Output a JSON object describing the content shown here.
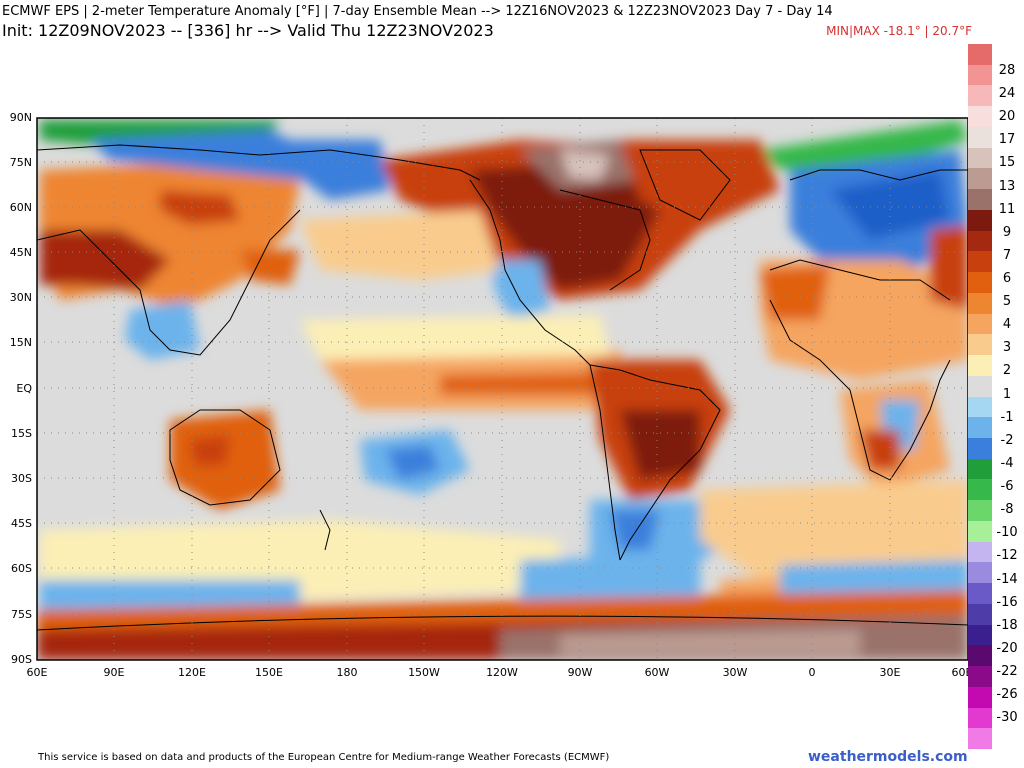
{
  "header": {
    "title_line": "ECMWF EPS | 2-meter Temperature Anomaly [°F] | 7-day Ensemble Mean --> 12Z16NOV2023 & 12Z23NOV2023  Day 7 - Day 14",
    "init_line": "Init: 12Z09NOV2023 -- [336] hr --> Valid Thu 12Z23NOV2023",
    "minmax": "MIN|MAX -18.1° | 20.7°F"
  },
  "map": {
    "lat_labels": [
      "90N",
      "75N",
      "60N",
      "45N",
      "30N",
      "15N",
      "EQ",
      "15S",
      "30S",
      "45S",
      "60S",
      "75S",
      "90S"
    ],
    "lon_labels": [
      "60E",
      "90E",
      "120E",
      "150E",
      "180",
      "150W",
      "120W",
      "90W",
      "60W",
      "30W",
      "0",
      "30E",
      "60E"
    ]
  },
  "colorbar": {
    "labels": [
      "28",
      "24",
      "20",
      "17",
      "15",
      "13",
      "11",
      "9",
      "7",
      "6",
      "5",
      "4",
      "3",
      "2",
      "1",
      "-1",
      "-2",
      "-4",
      "-6",
      "-8",
      "-10",
      "-12",
      "-14",
      "-16",
      "-18",
      "-20",
      "-22",
      "-26",
      "-30"
    ],
    "colors": [
      "#e56a6a",
      "#f29494",
      "#f6b8b8",
      "#f9dede",
      "#eae0dc",
      "#d8c2bc",
      "#bb9b92",
      "#9a726a",
      "#7d1a10",
      "#a52810",
      "#c8400e",
      "#e0600f",
      "#ee8530",
      "#f5a560",
      "#f9cc8e",
      "#fcefb5",
      "#dcdcdc",
      "#a6d7f2",
      "#6cb3ec",
      "#3b7fdc",
      "#1f9e3a",
      "#36b84a",
      "#6bd66b",
      "#a7ef98",
      "#c4b4f0",
      "#9a8be0",
      "#6a5ac8",
      "#4e3da8",
      "#3a1f8e",
      "#5a0a6e",
      "#8a0a8a",
      "#c20ab0",
      "#e23ad0",
      "#f07ae6"
    ]
  },
  "footer": {
    "credit": "This service is based on data and products of the European Centre for Medium-range Weather Forecasts (ECMWF)",
    "site": "weathermodels.com"
  }
}
